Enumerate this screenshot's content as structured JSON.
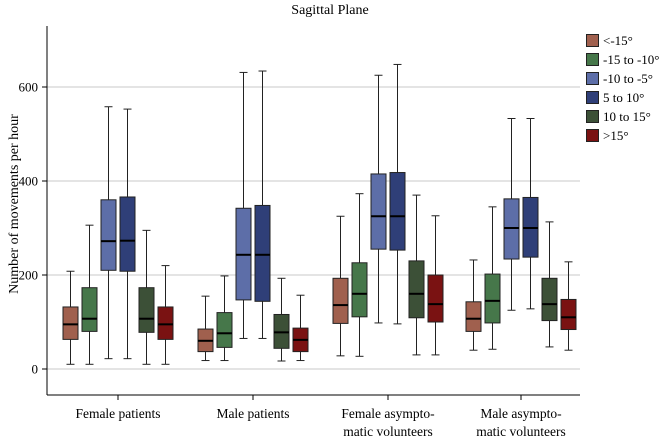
{
  "chart_data": {
    "type": "boxplot",
    "title": "Sagittal Plane",
    "xlabel": "",
    "ylabel": "Number of movements per hour",
    "ylim": [
      -25,
      730
    ],
    "yticks": [
      0,
      200,
      400,
      600
    ],
    "grid": true,
    "legend_position": "right",
    "groups": [
      {
        "label_lines": [
          "Female patients"
        ]
      },
      {
        "label_lines": [
          "Male patients"
        ]
      },
      {
        "label_lines": [
          "Female asympto-",
          "matic volunteers"
        ]
      },
      {
        "label_lines": [
          "Male asympto-",
          "matic volunteers"
        ]
      }
    ],
    "series": [
      {
        "name": "<-15°",
        "color": "#a0604e",
        "boxes": [
          {
            "min": 10,
            "q1": 63,
            "median": 95,
            "q3": 132,
            "max": 208
          },
          {
            "min": 18,
            "q1": 37,
            "median": 60,
            "q3": 85,
            "max": 155
          },
          {
            "min": 28,
            "q1": 97,
            "median": 136,
            "q3": 193,
            "max": 325
          },
          {
            "min": 40,
            "q1": 80,
            "median": 107,
            "q3": 143,
            "max": 232
          }
        ]
      },
      {
        "name": "-15 to -10°",
        "color": "#46774a",
        "boxes": [
          {
            "min": 10,
            "q1": 80,
            "median": 107,
            "q3": 173,
            "max": 306
          },
          {
            "min": 18,
            "q1": 46,
            "median": 76,
            "q3": 120,
            "max": 198
          },
          {
            "min": 27,
            "q1": 111,
            "median": 160,
            "q3": 226,
            "max": 373
          },
          {
            "min": 42,
            "q1": 98,
            "median": 145,
            "q3": 202,
            "max": 345
          }
        ]
      },
      {
        "name": "-10 to -5°",
        "color": "#5d6ea8",
        "boxes": [
          {
            "min": 22,
            "q1": 210,
            "median": 272,
            "q3": 360,
            "max": 558
          },
          {
            "min": 65,
            "q1": 147,
            "median": 243,
            "q3": 342,
            "max": 631
          },
          {
            "min": 98,
            "q1": 255,
            "median": 325,
            "q3": 415,
            "max": 625
          },
          {
            "min": 125,
            "q1": 234,
            "median": 300,
            "q3": 362,
            "max": 533
          }
        ]
      },
      {
        "name": "5 to 10°",
        "color": "#2f3f78",
        "boxes": [
          {
            "min": 22,
            "q1": 208,
            "median": 273,
            "q3": 366,
            "max": 553
          },
          {
            "min": 65,
            "q1": 144,
            "median": 243,
            "q3": 348,
            "max": 634
          },
          {
            "min": 96,
            "q1": 253,
            "median": 325,
            "q3": 418,
            "max": 648
          },
          {
            "min": 128,
            "q1": 238,
            "median": 300,
            "q3": 365,
            "max": 533
          }
        ]
      },
      {
        "name": "10 to 15°",
        "color": "#3c5037",
        "boxes": [
          {
            "min": 10,
            "q1": 78,
            "median": 107,
            "q3": 173,
            "max": 295
          },
          {
            "min": 17,
            "q1": 44,
            "median": 78,
            "q3": 116,
            "max": 193
          },
          {
            "min": 30,
            "q1": 109,
            "median": 160,
            "q3": 230,
            "max": 370
          },
          {
            "min": 47,
            "q1": 103,
            "median": 138,
            "q3": 193,
            "max": 313
          }
        ]
      },
      {
        "name": ">15°",
        "color": "#7a1212",
        "boxes": [
          {
            "min": 10,
            "q1": 63,
            "median": 95,
            "q3": 132,
            "max": 220
          },
          {
            "min": 18,
            "q1": 37,
            "median": 62,
            "q3": 87,
            "max": 157
          },
          {
            "min": 30,
            "q1": 100,
            "median": 138,
            "q3": 200,
            "max": 326
          },
          {
            "min": 40,
            "q1": 84,
            "median": 110,
            "q3": 148,
            "max": 228
          }
        ]
      }
    ]
  }
}
